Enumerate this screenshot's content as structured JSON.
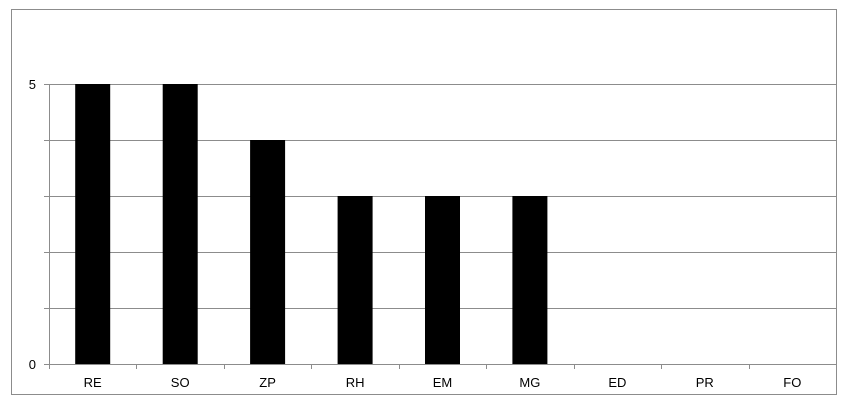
{
  "chart_data": {
    "type": "bar",
    "title": "",
    "xlabel": "",
    "ylabel": "",
    "categories": [
      "RE",
      "SO",
      "ZP",
      "RH",
      "EM",
      "MG",
      "ED",
      "PR",
      "FO"
    ],
    "values": [
      5,
      5,
      4,
      3,
      3,
      3,
      0,
      0,
      0
    ],
    "ylim": [
      0,
      5
    ],
    "gridlines": [
      0,
      1,
      2,
      3,
      4,
      5
    ],
    "y_tick_labels": [
      "0",
      "5"
    ],
    "grid": true,
    "legend": "none",
    "bar_color": "#000000",
    "grid_color": "#8c8c8c"
  }
}
